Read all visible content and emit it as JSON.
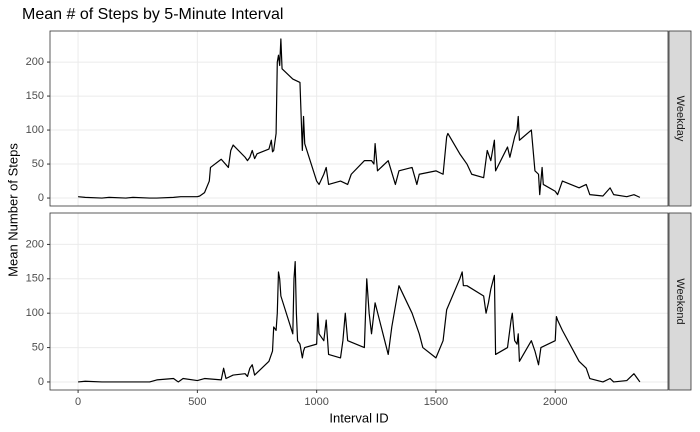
{
  "chart_data": {
    "type": "line",
    "title": "Mean # of Steps by 5-Minute Interval",
    "x_label": "Interval ID",
    "y_label": "Mean Number of Steps",
    "xlim": [
      -117.75,
      2472.75
    ],
    "xticks": [
      0,
      500,
      1000,
      1500,
      2000
    ],
    "ylim": [
      -11.7,
      245.7
    ],
    "yticks": [
      0,
      50,
      100,
      150,
      200
    ],
    "grid": true,
    "series": [
      {
        "name": "Weekday",
        "color": "#000000",
        "x": [
          0,
          30,
          100,
          130,
          200,
          230,
          300,
          330,
          400,
          430,
          500,
          510,
          530,
          550,
          555,
          600,
          630,
          640,
          650,
          700,
          710,
          720,
          730,
          740,
          750,
          800,
          810,
          815,
          820,
          830,
          835,
          840,
          845,
          850,
          855,
          900,
          930,
          940,
          945,
          950,
          1000,
          1010,
          1030,
          1040,
          1050,
          1100,
          1130,
          1145,
          1200,
          1230,
          1240,
          1245,
          1255,
          1300,
          1330,
          1345,
          1400,
          1420,
          1430,
          1500,
          1530,
          1545,
          1550,
          1600,
          1630,
          1650,
          1700,
          1715,
          1730,
          1745,
          1750,
          1800,
          1810,
          1830,
          1840,
          1845,
          1850,
          1900,
          1915,
          1930,
          1935,
          1945,
          1950,
          2000,
          2010,
          2030,
          2100,
          2130,
          2145,
          2200,
          2230,
          2245,
          2300,
          2330,
          2355
        ],
        "values": [
          2,
          1,
          0,
          1,
          0,
          1,
          0,
          0,
          1,
          2,
          2,
          3,
          8,
          25,
          45,
          57,
          45,
          70,
          78,
          60,
          55,
          60,
          70,
          58,
          65,
          72,
          85,
          68,
          70,
          95,
          200,
          210,
          195,
          234,
          190,
          175,
          170,
          70,
          120,
          80,
          25,
          20,
          35,
          45,
          20,
          25,
          20,
          35,
          55,
          55,
          50,
          80,
          40,
          55,
          20,
          40,
          45,
          20,
          35,
          40,
          35,
          90,
          95,
          65,
          50,
          35,
          30,
          70,
          55,
          85,
          40,
          75,
          60,
          90,
          100,
          120,
          85,
          100,
          40,
          35,
          5,
          45,
          20,
          10,
          5,
          25,
          15,
          20,
          5,
          3,
          15,
          5,
          2,
          5,
          1
        ]
      },
      {
        "name": "Weekend",
        "color": "#000000",
        "x": [
          0,
          30,
          100,
          130,
          200,
          230,
          300,
          330,
          400,
          420,
          440,
          500,
          530,
          600,
          610,
          620,
          650,
          700,
          710,
          720,
          730,
          740,
          800,
          815,
          820,
          830,
          835,
          840,
          845,
          850,
          900,
          905,
          910,
          915,
          920,
          930,
          940,
          945,
          950,
          1000,
          1005,
          1010,
          1030,
          1040,
          1050,
          1100,
          1110,
          1120,
          1130,
          1200,
          1210,
          1220,
          1230,
          1245,
          1300,
          1315,
          1330,
          1345,
          1400,
          1430,
          1445,
          1500,
          1530,
          1545,
          1600,
          1610,
          1615,
          1630,
          1700,
          1710,
          1720,
          1730,
          1745,
          1750,
          1800,
          1815,
          1820,
          1830,
          1840,
          1845,
          1850,
          1900,
          1915,
          1930,
          1940,
          2000,
          2005,
          2010,
          2030,
          2100,
          2130,
          2145,
          2200,
          2230,
          2245,
          2300,
          2330,
          2355
        ],
        "values": [
          0,
          1,
          0,
          0,
          0,
          0,
          0,
          3,
          5,
          0,
          5,
          2,
          5,
          3,
          20,
          5,
          10,
          12,
          8,
          20,
          25,
          10,
          30,
          45,
          80,
          75,
          100,
          160,
          150,
          125,
          70,
          150,
          175,
          100,
          60,
          55,
          35,
          45,
          50,
          55,
          100,
          70,
          60,
          90,
          40,
          35,
          60,
          100,
          60,
          50,
          150,
          100,
          70,
          115,
          40,
          80,
          110,
          140,
          100,
          70,
          50,
          35,
          60,
          105,
          150,
          160,
          140,
          140,
          125,
          100,
          115,
          135,
          155,
          40,
          50,
          90,
          100,
          60,
          55,
          70,
          30,
          60,
          45,
          25,
          50,
          60,
          95,
          90,
          75,
          30,
          20,
          5,
          0,
          5,
          0,
          2,
          12,
          0
        ]
      }
    ]
  }
}
